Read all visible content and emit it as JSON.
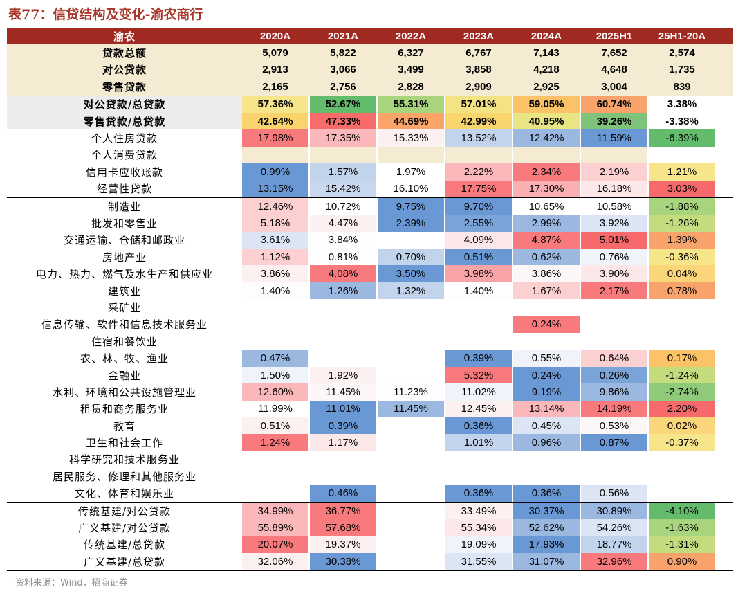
{
  "title": "表77：信贷结构及变化-渝农商行",
  "source": "资料来源：Wind，招商证券",
  "colors": {
    "header_bg": "#a02a22",
    "summary_bg": "#f5ead2",
    "title_color": "#a8372b"
  },
  "header": {
    "label": "渝农",
    "cols": [
      "2020A",
      "2021A",
      "2022A",
      "2023A",
      "2024A",
      "2025H1",
      "25H1-20A"
    ]
  },
  "rows": [
    {
      "label": "贷款总额",
      "kind": "sum",
      "cells": [
        [
          "5,079",
          ""
        ],
        [
          "5,822",
          ""
        ],
        [
          "6,327",
          ""
        ],
        [
          "6,767",
          ""
        ],
        [
          "7,143",
          ""
        ],
        [
          "7,652",
          ""
        ],
        [
          "2,574",
          ""
        ]
      ]
    },
    {
      "label": "对公贷款",
      "kind": "sum",
      "cells": [
        [
          "2,913",
          ""
        ],
        [
          "3,066",
          ""
        ],
        [
          "3,499",
          ""
        ],
        [
          "3,858",
          ""
        ],
        [
          "4,218",
          ""
        ],
        [
          "4,648",
          ""
        ],
        [
          "1,735",
          ""
        ]
      ]
    },
    {
      "label": "零售贷款",
      "kind": "sum",
      "cells": [
        [
          "2,165",
          ""
        ],
        [
          "2,756",
          ""
        ],
        [
          "2,828",
          ""
        ],
        [
          "2,909",
          ""
        ],
        [
          "2,925",
          ""
        ],
        [
          "3,004",
          ""
        ],
        [
          "839",
          ""
        ]
      ]
    },
    {
      "label": "对公贷款/总贷款",
      "kind": "ratio",
      "cells": [
        [
          "57.36%",
          "#f6e58a"
        ],
        [
          "52.67%",
          "#63bb6c"
        ],
        [
          "55.31%",
          "#a7d47c"
        ],
        [
          "57.01%",
          "#f4e384"
        ],
        [
          "59.05%",
          "#fbc267"
        ],
        [
          "60.74%",
          "#f8a26c"
        ],
        [
          "3.38%",
          ""
        ]
      ]
    },
    {
      "label": "零售贷款/总贷款",
      "kind": "ratio",
      "cells": [
        [
          "42.64%",
          "#f9d36c"
        ],
        [
          "47.33%",
          "#f86b6b"
        ],
        [
          "44.69%",
          "#fba46a"
        ],
        [
          "42.99%",
          "#f9d56e"
        ],
        [
          "40.95%",
          "#e9e584"
        ],
        [
          "39.26%",
          "#7fc27a"
        ],
        [
          "-3.38%",
          ""
        ]
      ]
    },
    {
      "label": "个人住房贷款",
      "kind": "data",
      "cells": [
        [
          "17.98%",
          "#f87a7c"
        ],
        [
          "17.35%",
          "#fbb8ba"
        ],
        [
          "15.33%",
          "#fdf0f1"
        ],
        [
          "13.52%",
          "#c2d3ec"
        ],
        [
          "12.42%",
          "#9bb8e0"
        ],
        [
          "11.59%",
          "#6a98d4"
        ],
        [
          "-6.39%",
          "#63bb6c"
        ]
      ]
    },
    {
      "label": "个人消费贷款",
      "kind": "data",
      "cells": [
        [
          "",
          "#f5ead2"
        ],
        [
          "",
          "#f5ead2"
        ],
        [
          "",
          "#f5ead2"
        ],
        [
          "",
          "#f5ead2"
        ],
        [
          "",
          "#f5ead2"
        ],
        [
          "",
          "#f5ead2"
        ],
        [
          "",
          "#ffffff"
        ]
      ]
    },
    {
      "label": "信用卡应收账款",
      "kind": "data",
      "cells": [
        [
          "0.99%",
          "#6a98d4"
        ],
        [
          "1.57%",
          "#c2d3ec"
        ],
        [
          "1.97%",
          "#ffffff"
        ],
        [
          "2.22%",
          "#fbb8ba"
        ],
        [
          "2.34%",
          "#f87a7c"
        ],
        [
          "2.19%",
          "#fccfd0"
        ],
        [
          "1.21%",
          "#f6e58a"
        ]
      ]
    },
    {
      "label": "经营性贷款",
      "kind": "data",
      "cells": [
        [
          "13.15%",
          "#6a98d4"
        ],
        [
          "15.42%",
          "#c9d8ee"
        ],
        [
          "16.10%",
          "#ffffff"
        ],
        [
          "17.75%",
          "#f87a7c"
        ],
        [
          "17.30%",
          "#fab0b2"
        ],
        [
          "16.18%",
          "#fde8e9"
        ],
        [
          "3.03%",
          "#f8696b"
        ]
      ]
    },
    {
      "label": "制造业",
      "kind": "data",
      "top": true,
      "cells": [
        [
          "12.46%",
          "#fccfd0"
        ],
        [
          "10.72%",
          "#ffffff"
        ],
        [
          "9.75%",
          "#6a98d4"
        ],
        [
          "9.70%",
          "#6a98d4"
        ],
        [
          "10.65%",
          "#ffffff"
        ],
        [
          "10.58%",
          "#ffffff"
        ],
        [
          "-1.88%",
          "#a7d47c"
        ]
      ]
    },
    {
      "label": "批发和零售业",
      "kind": "data",
      "cells": [
        [
          "5.18%",
          "#fccfd0"
        ],
        [
          "4.47%",
          "#fdf0f1"
        ],
        [
          "2.39%",
          "#6a98d4"
        ],
        [
          "2.55%",
          "#7aa4d8"
        ],
        [
          "2.99%",
          "#9bb8e0"
        ],
        [
          "3.92%",
          "#dbe5f3"
        ],
        [
          "-1.26%",
          "#c5dc7e"
        ]
      ]
    },
    {
      "label": "交通运输、仓储和邮政业",
      "kind": "data",
      "cells": [
        [
          "3.61%",
          "#dbe5f3"
        ],
        [
          "3.84%",
          "#fdfdff"
        ],
        [
          "",
          ""
        ],
        [
          "4.09%",
          "#fde8e9"
        ],
        [
          "4.87%",
          "#f87a7c"
        ],
        [
          "5.01%",
          "#f8696b"
        ],
        [
          "1.39%",
          "#f8a26c"
        ]
      ]
    },
    {
      "label": "房地产业",
      "kind": "data",
      "cells": [
        [
          "1.12%",
          "#fccfd0"
        ],
        [
          "0.81%",
          "#fdfdff"
        ],
        [
          "0.70%",
          "#c2d3ec"
        ],
        [
          "0.51%",
          "#6a98d4"
        ],
        [
          "0.62%",
          "#9bb8e0"
        ],
        [
          "0.76%",
          "#f0f4fa"
        ],
        [
          "-0.36%",
          "#f6e58a"
        ]
      ]
    },
    {
      "label": "电力、热力、燃气及水生产和供应业",
      "kind": "data",
      "cells": [
        [
          "3.86%",
          "#fdf0f1"
        ],
        [
          "4.08%",
          "#f87a7c"
        ],
        [
          "3.50%",
          "#6a98d4"
        ],
        [
          "3.98%",
          "#f8a4a6"
        ],
        [
          "3.86%",
          "#fdf6f7"
        ],
        [
          "3.90%",
          "#fde8e9"
        ],
        [
          "0.04%",
          "#fbd57a"
        ]
      ]
    },
    {
      "label": "建筑业",
      "kind": "data",
      "cells": [
        [
          "1.40%",
          "#fdfdff"
        ],
        [
          "1.26%",
          "#9bb8e0"
        ],
        [
          "1.32%",
          "#c2d3ec"
        ],
        [
          "1.40%",
          "#fdfdff"
        ],
        [
          "1.67%",
          "#fccfd0"
        ],
        [
          "2.17%",
          "#f87a7c"
        ],
        [
          "0.78%",
          "#f8a26c"
        ]
      ]
    },
    {
      "label": "采矿业",
      "kind": "data",
      "cells": [
        [
          "",
          ""
        ],
        [
          "",
          ""
        ],
        [
          "",
          ""
        ],
        [
          "",
          ""
        ],
        [
          "",
          ""
        ],
        [
          "",
          ""
        ],
        [
          "",
          ""
        ]
      ]
    },
    {
      "label": "信息传输、软件和信息技术服务业",
      "kind": "data",
      "cells": [
        [
          "",
          ""
        ],
        [
          "",
          ""
        ],
        [
          "",
          ""
        ],
        [
          "",
          ""
        ],
        [
          "0.24%",
          "#f87a7c"
        ],
        [
          "",
          ""
        ],
        [
          "",
          ""
        ]
      ]
    },
    {
      "label": "住宿和餐饮业",
      "kind": "data",
      "cells": [
        [
          "",
          ""
        ],
        [
          "",
          ""
        ],
        [
          "",
          ""
        ],
        [
          "",
          ""
        ],
        [
          "",
          ""
        ],
        [
          "",
          ""
        ],
        [
          "",
          ""
        ]
      ]
    },
    {
      "label": "农、林、牧、渔业",
      "kind": "data",
      "cells": [
        [
          "0.47%",
          "#9bb8e0"
        ],
        [
          "",
          ""
        ],
        [
          "",
          ""
        ],
        [
          "0.39%",
          "#6a98d4"
        ],
        [
          "0.55%",
          "#f0f4fa"
        ],
        [
          "0.64%",
          "#fccfd0"
        ],
        [
          "0.17%",
          "#fbc267"
        ]
      ]
    },
    {
      "label": "金融业",
      "kind": "data",
      "cells": [
        [
          "1.50%",
          "#eff3fa"
        ],
        [
          "1.92%",
          "#fdf0f1"
        ],
        [
          "",
          ""
        ],
        [
          "5.32%",
          "#f87a7c"
        ],
        [
          "0.24%",
          "#6a98d4"
        ],
        [
          "0.26%",
          "#7aa4d8"
        ],
        [
          "-1.24%",
          "#c5dc7e"
        ]
      ]
    },
    {
      "label": "水利、环境和公共设施管理业",
      "kind": "data",
      "cells": [
        [
          "12.60%",
          "#fbb8ba"
        ],
        [
          "11.45%",
          "#fdf6f7"
        ],
        [
          "11.23%",
          "#fdfdff"
        ],
        [
          "11.02%",
          "#eff3fa"
        ],
        [
          "9.19%",
          "#6a98d4"
        ],
        [
          "9.86%",
          "#9bb8e0"
        ],
        [
          "-2.74%",
          "#8fc97a"
        ]
      ]
    },
    {
      "label": "租赁和商务服务业",
      "kind": "data",
      "cells": [
        [
          "11.99%",
          "#ffffff"
        ],
        [
          "11.01%",
          "#6a98d4"
        ],
        [
          "11.45%",
          "#9bb8e0"
        ],
        [
          "12.45%",
          "#fdf0f1"
        ],
        [
          "13.14%",
          "#fbb8ba"
        ],
        [
          "14.19%",
          "#f87a7c"
        ],
        [
          "2.20%",
          "#f8696b"
        ]
      ]
    },
    {
      "label": "教育",
      "kind": "data",
      "cells": [
        [
          "0.51%",
          "#fdf0f1"
        ],
        [
          "0.39%",
          "#6a98d4"
        ],
        [
          "",
          ""
        ],
        [
          "0.36%",
          "#6a98d4"
        ],
        [
          "0.45%",
          "#dbe5f3"
        ],
        [
          "0.53%",
          "#fdf6f7"
        ],
        [
          "0.02%",
          "#fbd57a"
        ]
      ]
    },
    {
      "label": "卫生和社会工作",
      "kind": "data",
      "cells": [
        [
          "1.24%",
          "#f87a7c"
        ],
        [
          "1.17%",
          "#fde8e9"
        ],
        [
          "",
          ""
        ],
        [
          "1.01%",
          "#c2d3ec"
        ],
        [
          "0.96%",
          "#9bb8e0"
        ],
        [
          "0.87%",
          "#6a98d4"
        ],
        [
          "-0.37%",
          "#f6e58a"
        ]
      ]
    },
    {
      "label": "科学研究和技术服务业",
      "kind": "data",
      "cells": [
        [
          "",
          ""
        ],
        [
          "",
          ""
        ],
        [
          "",
          ""
        ],
        [
          "",
          ""
        ],
        [
          "",
          ""
        ],
        [
          "",
          ""
        ],
        [
          "",
          ""
        ]
      ]
    },
    {
      "label": "居民服务、修理和其他服务业",
      "kind": "data",
      "cells": [
        [
          "",
          ""
        ],
        [
          "",
          ""
        ],
        [
          "",
          ""
        ],
        [
          "",
          ""
        ],
        [
          "",
          ""
        ],
        [
          "",
          ""
        ],
        [
          "",
          ""
        ]
      ]
    },
    {
      "label": "文化、体育和娱乐业",
      "kind": "data",
      "cells": [
        [
          "",
          ""
        ],
        [
          "0.46%",
          "#6a98d4"
        ],
        [
          "",
          ""
        ],
        [
          "0.36%",
          "#6a98d4"
        ],
        [
          "0.36%",
          "#6a98d4"
        ],
        [
          "0.56%",
          "#dbe5f3"
        ],
        [
          "",
          ""
        ]
      ]
    },
    {
      "label": "传统基建/对公贷款",
      "kind": "data",
      "top": true,
      "cells": [
        [
          "34.99%",
          "#fbb8ba"
        ],
        [
          "36.77%",
          "#f87a7c"
        ],
        [
          "",
          ""
        ],
        [
          "33.49%",
          "#fdf0f1"
        ],
        [
          "30.37%",
          "#6a98d4"
        ],
        [
          "30.89%",
          "#9bb8e0"
        ],
        [
          "-4.10%",
          "#63bb6c"
        ]
      ]
    },
    {
      "label": "广义基建/对公贷款",
      "kind": "data",
      "cells": [
        [
          "55.89%",
          "#fbb8ba"
        ],
        [
          "57.68%",
          "#f87a7c"
        ],
        [
          "",
          ""
        ],
        [
          "55.34%",
          "#fde8e9"
        ],
        [
          "52.62%",
          "#9bb8e0"
        ],
        [
          "54.26%",
          "#dbe5f3"
        ],
        [
          "-1.63%",
          "#a7d47c"
        ]
      ]
    },
    {
      "label": "传统基建/总贷款",
      "kind": "data",
      "cells": [
        [
          "20.07%",
          "#f87a7c"
        ],
        [
          "19.37%",
          "#fdf0f1"
        ],
        [
          "",
          ""
        ],
        [
          "19.09%",
          "#eff3fa"
        ],
        [
          "17.93%",
          "#6a98d4"
        ],
        [
          "18.77%",
          "#c2d3ec"
        ],
        [
          "-1.31%",
          "#c5dc7e"
        ]
      ]
    },
    {
      "label": "广义基建/总贷款",
      "kind": "data",
      "bottom": true,
      "cells": [
        [
          "32.06%",
          "#fdf0f1"
        ],
        [
          "30.38%",
          "#6a98d4"
        ],
        [
          "",
          ""
        ],
        [
          "31.55%",
          "#dbe5f3"
        ],
        [
          "31.07%",
          "#9bb8e0"
        ],
        [
          "32.96%",
          "#f87a7c"
        ],
        [
          "0.90%",
          "#f8a26c"
        ]
      ]
    }
  ]
}
